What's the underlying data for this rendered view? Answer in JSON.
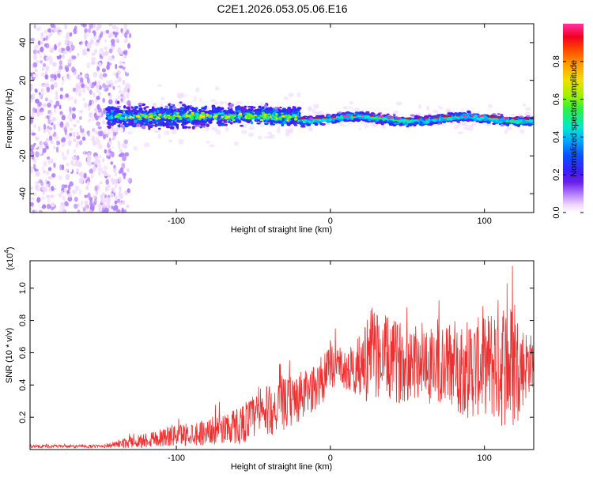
{
  "chart_data": [
    {
      "type": "heatmap",
      "title": "C2E1.2026.053.05.06.E16",
      "xlabel": "Height of straight line (km)",
      "ylabel": "Frequency (Hz)",
      "xlim": [
        -195,
        132
      ],
      "ylim": [
        -50,
        50
      ],
      "xticks": [
        -100,
        0,
        100
      ],
      "yticks": [
        -40,
        -20,
        0,
        20,
        40
      ],
      "colorbar": {
        "label": "Normalized spectral amplitude",
        "range": [
          0,
          1
        ],
        "ticks": [
          0.0,
          0.2,
          0.4,
          0.6,
          0.8
        ],
        "tick_labels": [
          "0.0",
          "0.2",
          "0.4",
          "0.6",
          "0.8"
        ],
        "colors": [
          "#ffffff",
          "#f0d8ff",
          "#b07cff",
          "#6a1fe8",
          "#3a1fff",
          "#0a50ff",
          "#00a8ff",
          "#00e8d0",
          "#30f040",
          "#a0f000",
          "#f0e000",
          "#ffa000",
          "#ff4a00",
          "#f20020",
          "#ff30a0"
        ]
      },
      "features": {
        "noise_region_x": [
          -195,
          -140
        ],
        "signal_region_x": [
          -145,
          132
        ],
        "signal_center_hz": 0,
        "broad_spread_hz": [
          -8,
          10
        ],
        "narrow_line_x": [
          -20,
          132
        ]
      }
    },
    {
      "type": "line",
      "xlabel": "Height of straight line (km)",
      "ylabel": "SNR (10 * v/v)",
      "y_scale_label": "(x10",
      "y_scale_exp": "4",
      "y_scale_close": ")",
      "xlim": [
        -195,
        132
      ],
      "ylim": [
        0,
        1.17
      ],
      "xticks": [
        -100,
        0,
        100
      ],
      "yticks": [
        0.2,
        0.4,
        0.6,
        0.8,
        1.0
      ],
      "ytick_labels": [
        "0.2",
        "0.4",
        "0.6",
        "0.8",
        "1.0"
      ],
      "color": "#ee3030",
      "envelope": {
        "x": [
          -195,
          -150,
          -140,
          -120,
          -100,
          -80,
          -60,
          -50,
          -40,
          -30,
          -20,
          -10,
          0,
          5,
          10,
          20,
          25,
          30,
          40,
          50,
          60,
          70,
          80,
          90,
          100,
          110,
          120,
          125,
          132
        ],
        "y_mean": [
          0.02,
          0.02,
          0.03,
          0.06,
          0.09,
          0.11,
          0.15,
          0.2,
          0.24,
          0.28,
          0.32,
          0.38,
          0.5,
          0.55,
          0.48,
          0.52,
          0.58,
          0.6,
          0.54,
          0.55,
          0.56,
          0.5,
          0.53,
          0.5,
          0.52,
          0.55,
          0.5,
          0.52,
          0.55
        ],
        "y_amp": [
          0.01,
          0.01,
          0.02,
          0.05,
          0.07,
          0.08,
          0.12,
          0.14,
          0.16,
          0.16,
          0.16,
          0.14,
          0.18,
          0.1,
          0.12,
          0.2,
          0.3,
          0.28,
          0.26,
          0.25,
          0.25,
          0.26,
          0.28,
          0.32,
          0.3,
          0.42,
          0.4,
          0.26,
          0.15
        ]
      },
      "samples": 1400
    }
  ]
}
